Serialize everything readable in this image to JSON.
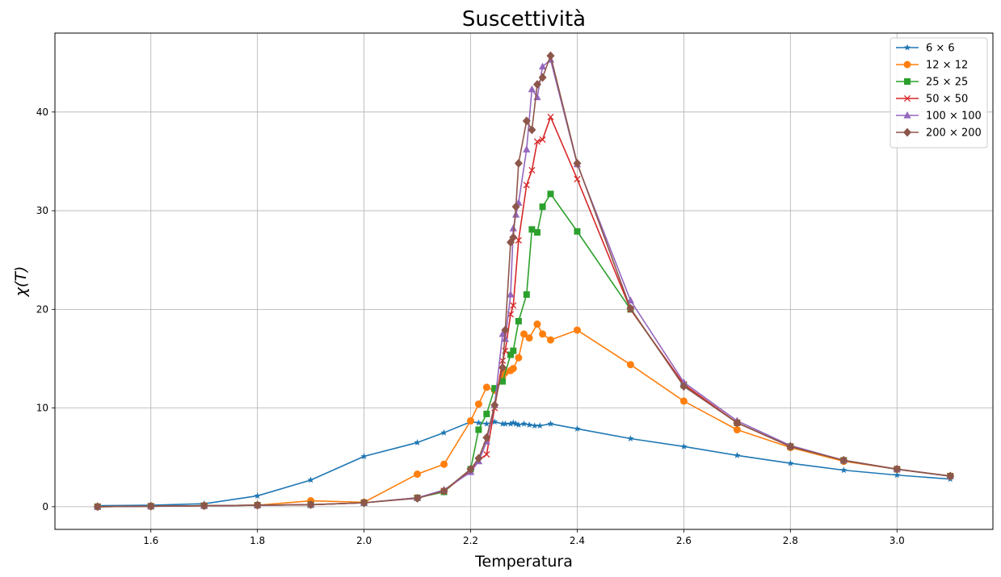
{
  "chart_data": {
    "type": "line",
    "title": "Suscettività",
    "xlabel": "Temperatura",
    "ylabel": "χ(T)",
    "xlim": [
      1.42,
      3.18
    ],
    "ylim": [
      -2.3,
      48.0
    ],
    "xticks": [
      1.6,
      1.8,
      2.0,
      2.2,
      2.4,
      2.6,
      2.8,
      3.0
    ],
    "xtick_labels": [
      "1.6",
      "1.8",
      "2.0",
      "2.2",
      "2.4",
      "2.6",
      "2.8",
      "3.0"
    ],
    "yticks": [
      0,
      10,
      20,
      30,
      40
    ],
    "ytick_labels": [
      "0",
      "10",
      "20",
      "30",
      "40"
    ],
    "grid": true,
    "legend_position": "top-right",
    "series": [
      {
        "name": "6 × 6",
        "color": "#1f77b4",
        "marker": "star",
        "x": [
          1.5,
          1.6,
          1.7,
          1.8,
          1.9,
          2.0,
          2.1,
          2.15,
          2.2,
          2.215,
          2.23,
          2.245,
          2.26,
          2.265,
          2.275,
          2.28,
          2.285,
          2.29,
          2.3,
          2.31,
          2.32,
          2.33,
          2.35,
          2.4,
          2.5,
          2.6,
          2.7,
          2.8,
          2.9,
          3.0,
          3.1
        ],
        "y": [
          0.1,
          0.15,
          0.3,
          1.1,
          2.7,
          5.1,
          6.5,
          7.5,
          8.6,
          8.5,
          8.4,
          8.6,
          8.4,
          8.4,
          8.4,
          8.5,
          8.4,
          8.3,
          8.4,
          8.3,
          8.2,
          8.2,
          8.4,
          7.9,
          6.9,
          6.1,
          5.2,
          4.4,
          3.7,
          3.2,
          2.8
        ]
      },
      {
        "name": "12 × 12",
        "color": "#ff7f0e",
        "marker": "circle",
        "x": [
          1.5,
          1.6,
          1.7,
          1.8,
          1.9,
          2.0,
          2.1,
          2.15,
          2.2,
          2.215,
          2.23,
          2.245,
          2.26,
          2.265,
          2.275,
          2.28,
          2.29,
          2.3,
          2.31,
          2.325,
          2.335,
          2.35,
          2.4,
          2.5,
          2.6,
          2.7,
          2.8,
          2.9,
          3.0,
          3.1
        ],
        "y": [
          0.0,
          0.05,
          0.1,
          0.15,
          0.6,
          0.45,
          3.3,
          4.3,
          8.7,
          10.4,
          12.1,
          11.8,
          13.2,
          13.6,
          13.8,
          14.0,
          15.1,
          17.5,
          17.1,
          18.5,
          17.5,
          16.9,
          17.9,
          14.4,
          10.7,
          7.8,
          6.0,
          4.6,
          3.8,
          3.1
        ]
      },
      {
        "name": "25 × 25",
        "color": "#2ca02c",
        "marker": "square",
        "x": [
          1.5,
          1.6,
          1.7,
          1.8,
          1.9,
          2.0,
          2.1,
          2.15,
          2.2,
          2.215,
          2.23,
          2.245,
          2.26,
          2.275,
          2.28,
          2.29,
          2.305,
          2.315,
          2.325,
          2.335,
          2.35,
          2.4,
          2.5,
          2.6,
          2.7,
          2.8,
          2.9,
          3.0,
          3.1
        ],
        "y": [
          0.0,
          0.05,
          0.1,
          0.15,
          0.2,
          0.4,
          0.9,
          1.5,
          3.8,
          7.8,
          9.4,
          12.0,
          12.7,
          15.4,
          15.8,
          18.8,
          21.5,
          28.1,
          27.8,
          30.4,
          31.7,
          27.9,
          20.0,
          12.3,
          8.5,
          6.1,
          4.7,
          3.8,
          3.1
        ]
      },
      {
        "name": "50 × 50",
        "color": "#d62728",
        "marker": "x",
        "x": [
          1.5,
          1.6,
          1.7,
          1.8,
          1.9,
          2.0,
          2.1,
          2.15,
          2.2,
          2.215,
          2.23,
          2.245,
          2.26,
          2.265,
          2.275,
          2.28,
          2.29,
          2.305,
          2.315,
          2.325,
          2.335,
          2.35,
          2.4,
          2.5,
          2.6,
          2.7,
          2.8,
          2.9,
          3.0,
          3.1
        ],
        "y": [
          0.0,
          0.05,
          0.1,
          0.15,
          0.2,
          0.4,
          0.9,
          1.6,
          3.6,
          4.7,
          5.3,
          10.0,
          14.8,
          15.8,
          19.5,
          20.4,
          27.0,
          32.6,
          34.1,
          37.0,
          37.2,
          39.5,
          33.2,
          20.0,
          12.4,
          8.5,
          6.1,
          4.7,
          3.8,
          3.1
        ]
      },
      {
        "name": "100 × 100",
        "color": "#9467bd",
        "marker": "triangle",
        "x": [
          1.5,
          1.6,
          1.7,
          1.8,
          1.9,
          2.0,
          2.1,
          2.15,
          2.2,
          2.215,
          2.23,
          2.245,
          2.26,
          2.265,
          2.275,
          2.28,
          2.285,
          2.29,
          2.305,
          2.315,
          2.325,
          2.335,
          2.35,
          2.4,
          2.5,
          2.6,
          2.7,
          2.8,
          2.9,
          3.0,
          3.1
        ],
        "y": [
          0.0,
          0.05,
          0.1,
          0.15,
          0.2,
          0.4,
          0.9,
          1.7,
          3.5,
          4.6,
          6.6,
          10.3,
          17.5,
          17.0,
          21.5,
          28.2,
          29.6,
          30.8,
          36.2,
          42.3,
          41.5,
          44.6,
          45.3,
          34.7,
          20.9,
          12.6,
          8.7,
          6.2,
          4.7,
          3.8,
          3.1
        ]
      },
      {
        "name": "200 × 200",
        "color": "#8c564b",
        "marker": "diamond",
        "x": [
          1.5,
          1.6,
          1.7,
          1.8,
          1.9,
          2.0,
          2.1,
          2.15,
          2.2,
          2.215,
          2.23,
          2.245,
          2.26,
          2.265,
          2.275,
          2.28,
          2.285,
          2.29,
          2.305,
          2.315,
          2.325,
          2.335,
          2.35,
          2.4,
          2.5,
          2.6,
          2.7,
          2.8,
          2.9,
          3.0,
          3.1
        ],
        "y": [
          0.0,
          0.05,
          0.1,
          0.15,
          0.2,
          0.4,
          0.85,
          1.6,
          3.8,
          4.9,
          7.0,
          10.3,
          14.1,
          17.9,
          26.8,
          27.3,
          30.4,
          34.8,
          39.1,
          38.2,
          42.8,
          43.5,
          45.7,
          34.8,
          20.1,
          12.2,
          8.5,
          6.1,
          4.7,
          3.8,
          3.1
        ]
      }
    ]
  }
}
